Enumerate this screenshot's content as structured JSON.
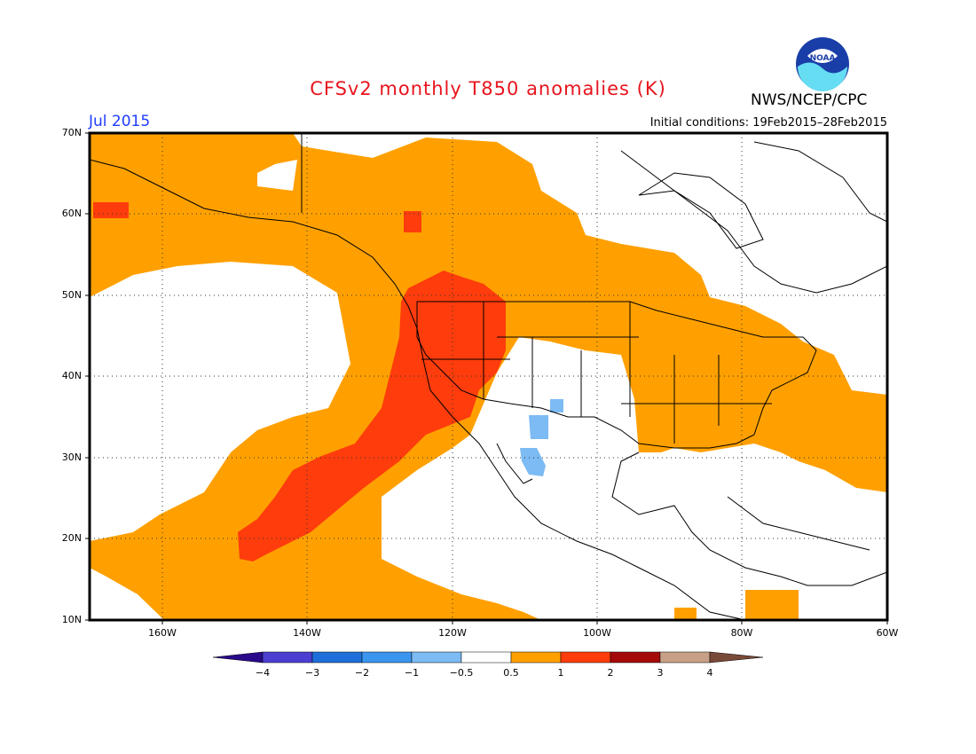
{
  "title": "CFSv2 monthly T850 anomalies (K)",
  "valid_month": "Jul 2015",
  "organization": "NWS/NCEP/CPC",
  "logo_text": "NOAA",
  "initial_conditions": "Initial conditions: 19Feb2015–28Feb2015",
  "lat_labels": [
    "70N",
    "60N",
    "50N",
    "40N",
    "30N",
    "20N",
    "10N"
  ],
  "lon_labels": [
    "160W",
    "140W",
    "120W",
    "100W",
    "80W",
    "60W"
  ],
  "colorbar": {
    "labels": [
      "−4",
      "−3",
      "−2",
      "−1",
      "−0.5",
      "0.5",
      "1",
      "2",
      "3",
      "4"
    ],
    "colors": [
      "#2a0a8a",
      "#4a3fd1",
      "#1e6fd9",
      "#3a95ef",
      "#7cbbf3",
      "#ffffff",
      "#ffa000",
      "#ff3c0c",
      "#a50a0a",
      "#c8a088",
      "#7a4a38"
    ]
  },
  "map": {
    "extent": "10N–70N, 170W–60W",
    "colors": {
      "warm": "#ffa000",
      "hot": "#ff3c0c",
      "cool": "#7cbbf3"
    }
  }
}
